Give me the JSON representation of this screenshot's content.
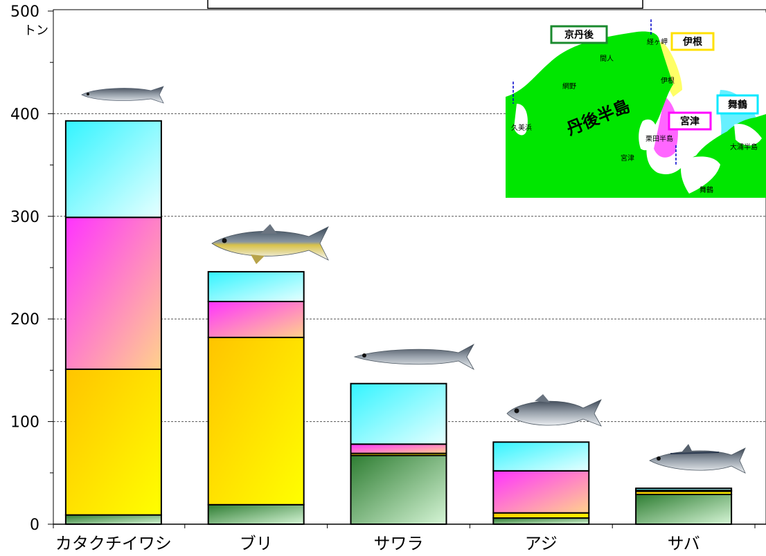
{
  "chart_data": {
    "type": "bar",
    "stacked": true,
    "ylim": [
      0,
      500
    ],
    "yticks": [
      0,
      100,
      200,
      300,
      400,
      500
    ],
    "y_unit": "トン",
    "grid": "horizontal dashed at 100, 200, 300, 400",
    "categories": [
      "カタクチイワシ",
      "ブリ",
      "サワラ",
      "アジ",
      "サバ"
    ],
    "series": [
      {
        "name": "京丹後",
        "color": "#2e8b3a",
        "values": [
          9,
          19,
          67,
          6,
          29
        ]
      },
      {
        "name": "伊根",
        "color": "#ffd000",
        "values": [
          142,
          163,
          2,
          5,
          3
        ]
      },
      {
        "name": "宮津",
        "color": "#ff40ff",
        "values": [
          148,
          35,
          9,
          41,
          1
        ]
      },
      {
        "name": "舞鶴",
        "color": "#40f0ff",
        "values": [
          94,
          29,
          59,
          28,
          2
        ]
      }
    ]
  },
  "map": {
    "regions": [
      "京丹後",
      "伊根",
      "宮津",
      "舞鶴"
    ],
    "big_label": "丹後半島",
    "places": [
      "間人",
      "経ヶ岬",
      "網野",
      "伊根",
      "久美浜",
      "栗田半島",
      "宮津",
      "舞鶴",
      "大浦半島"
    ]
  },
  "colors": {
    "kyotango": "#1a8a2e",
    "ine": "#ffe000",
    "miyazu": "#ff00ff",
    "maizuru": "#00e8ff",
    "land": "#00e600"
  },
  "icons": [
    "anchovy-icon",
    "yellowtail-icon",
    "spanish-mackerel-icon",
    "horse-mackerel-icon",
    "mackerel-icon"
  ]
}
